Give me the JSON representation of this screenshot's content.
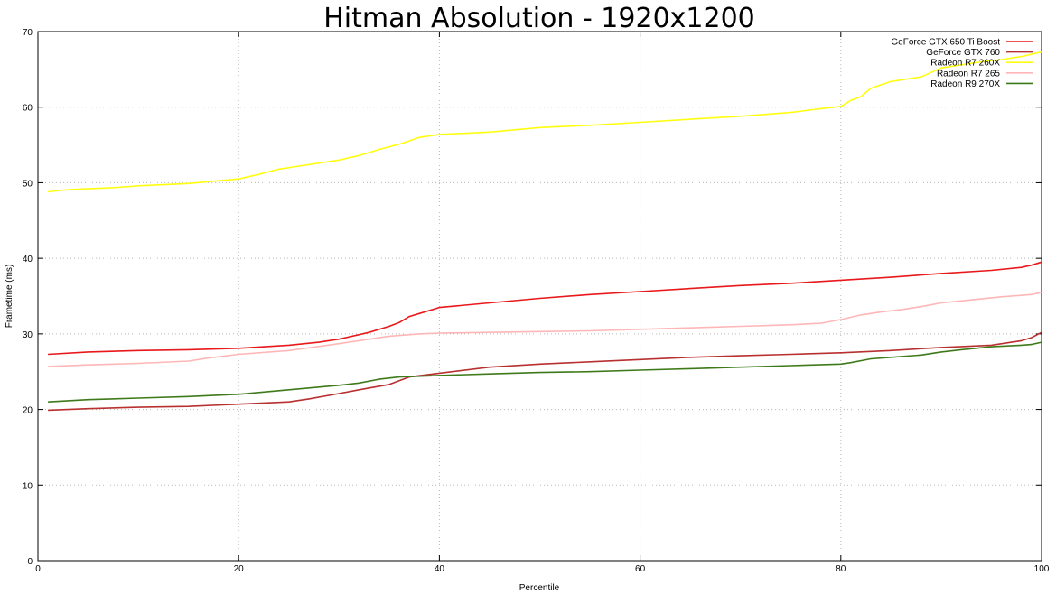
{
  "chart_data": {
    "type": "line",
    "title": "Hitman Absolution - 1920x1200",
    "xlabel": "Percentile",
    "ylabel": "Frametime (ms)",
    "xlim": [
      0,
      100
    ],
    "ylim": [
      0,
      70
    ],
    "xticks": [
      0,
      20,
      40,
      60,
      80,
      100
    ],
    "yticks": [
      0,
      10,
      20,
      30,
      40,
      50,
      60,
      70
    ],
    "grid": true,
    "legend_position": "top-right",
    "series": [
      {
        "name": "GeForce GTX 650 Ti Boost",
        "color": "#e8181b",
        "x": [
          1,
          5,
          10,
          15,
          20,
          25,
          28,
          30,
          33,
          35,
          36,
          37,
          38,
          40,
          45,
          50,
          55,
          60,
          65,
          70,
          75,
          80,
          85,
          90,
          95,
          98,
          99,
          100
        ],
        "y": [
          27.3,
          27.6,
          27.8,
          27.9,
          28.1,
          28.5,
          28.9,
          29.3,
          30.2,
          31.0,
          31.5,
          32.3,
          32.7,
          33.5,
          34.1,
          34.7,
          35.2,
          35.6,
          36.0,
          36.4,
          36.7,
          37.1,
          37.5,
          38.0,
          38.4,
          38.8,
          39.1,
          39.5
        ]
      },
      {
        "name": "GeForce GTX 760",
        "color": "#b83030",
        "x": [
          1,
          5,
          10,
          15,
          20,
          25,
          27,
          30,
          32,
          35,
          37,
          40,
          45,
          50,
          55,
          60,
          65,
          70,
          75,
          80,
          85,
          90,
          95,
          97,
          98,
          99,
          100
        ],
        "y": [
          19.9,
          20.1,
          20.3,
          20.4,
          20.7,
          21.0,
          21.4,
          22.1,
          22.6,
          23.3,
          24.3,
          24.8,
          25.6,
          26.0,
          26.3,
          26.6,
          26.9,
          27.1,
          27.3,
          27.5,
          27.8,
          28.2,
          28.5,
          28.9,
          29.1,
          29.5,
          30.2
        ]
      },
      {
        "name": "Radeon R7 260X",
        "color": "#ffff10",
        "x": [
          1,
          3,
          5,
          8,
          10,
          15,
          20,
          22,
          24,
          26,
          28,
          30,
          32,
          34,
          36,
          38,
          40,
          45,
          50,
          55,
          60,
          65,
          70,
          75,
          78,
          80,
          81,
          82,
          83,
          85,
          88,
          89,
          90,
          92,
          94,
          96,
          98,
          100
        ],
        "y": [
          48.8,
          49.1,
          49.2,
          49.4,
          49.6,
          49.9,
          50.5,
          51.1,
          51.8,
          52.2,
          52.6,
          53.0,
          53.6,
          54.4,
          55.1,
          56.0,
          56.4,
          56.7,
          57.3,
          57.6,
          58.0,
          58.4,
          58.8,
          59.3,
          59.8,
          60.1,
          60.9,
          61.4,
          62.5,
          63.4,
          64.0,
          64.6,
          65.2,
          65.6,
          66.0,
          66.3,
          66.7,
          67.3
        ]
      },
      {
        "name": "Radeon R7 265",
        "color": "#ffb6b6",
        "x": [
          1,
          5,
          10,
          15,
          17,
          20,
          25,
          30,
          35,
          38,
          40,
          45,
          50,
          55,
          60,
          65,
          70,
          75,
          78,
          80,
          82,
          84,
          86,
          88,
          90,
          93,
          96,
          99,
          100
        ],
        "y": [
          25.7,
          25.9,
          26.1,
          26.4,
          26.8,
          27.3,
          27.8,
          28.7,
          29.7,
          30.0,
          30.1,
          30.2,
          30.3,
          30.4,
          30.6,
          30.8,
          31.0,
          31.2,
          31.4,
          31.9,
          32.5,
          32.9,
          33.2,
          33.6,
          34.1,
          34.5,
          34.9,
          35.2,
          35.5
        ]
      },
      {
        "name": "Radeon R9 270X",
        "color": "#3f7a1a",
        "x": [
          1,
          5,
          10,
          15,
          20,
          25,
          30,
          32,
          34,
          36,
          40,
          45,
          50,
          55,
          60,
          65,
          70,
          75,
          80,
          81,
          83,
          85,
          88,
          90,
          92,
          95,
          98,
          99,
          100
        ],
        "y": [
          21.0,
          21.3,
          21.5,
          21.7,
          22.0,
          22.6,
          23.2,
          23.5,
          24.0,
          24.3,
          24.5,
          24.7,
          24.9,
          25.0,
          25.2,
          25.4,
          25.6,
          25.8,
          26.0,
          26.2,
          26.7,
          26.9,
          27.2,
          27.6,
          27.9,
          28.3,
          28.5,
          28.6,
          28.9
        ]
      }
    ]
  }
}
